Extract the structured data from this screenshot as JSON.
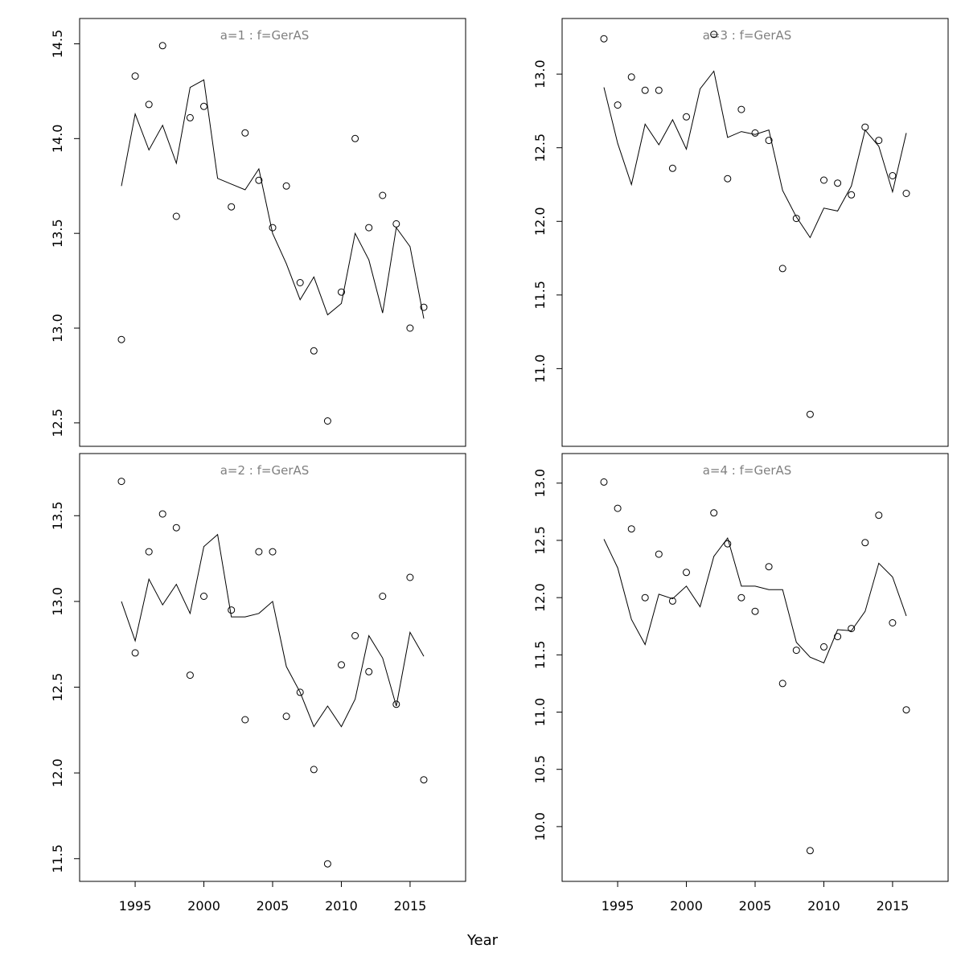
{
  "figure": {
    "xlabel": "Year"
  },
  "chart_data": [
    {
      "type": "line",
      "title": "a=1 : f=GerAS",
      "xlim": [
        1992,
        2018
      ],
      "ylim": [
        12.46,
        14.55
      ],
      "yticks": [
        "12.5",
        "13.0",
        "13.5",
        "14.0",
        "14.5"
      ],
      "xticks": [],
      "series": [
        {
          "type": "scatter",
          "x": [
            1994,
            1995,
            1996,
            1997,
            1998,
            1999,
            2000,
            2002,
            2003,
            2004,
            2005,
            2006,
            2007,
            2008,
            2009,
            2010,
            2011,
            2012,
            2013,
            2014,
            2015,
            2016
          ],
          "values": [
            12.94,
            14.33,
            14.18,
            14.49,
            13.59,
            14.11,
            14.17,
            13.64,
            14.03,
            13.78,
            13.53,
            13.75,
            13.24,
            12.88,
            12.51,
            13.19,
            14.0,
            13.53,
            13.7,
            13.55,
            13.0,
            13.11
          ]
        },
        {
          "type": "line",
          "x": [
            1994,
            1995,
            1996,
            1997,
            1998,
            1999,
            2000,
            2001,
            2002,
            2003,
            2004,
            2005,
            2006,
            2007,
            2008,
            2009,
            2010,
            2011,
            2012,
            2013,
            2014,
            2015,
            2016
          ],
          "values": [
            13.75,
            14.13,
            13.94,
            14.07,
            13.87,
            14.27,
            14.31,
            13.79,
            13.76,
            13.73,
            13.84,
            13.5,
            13.34,
            13.15,
            13.27,
            13.07,
            13.13,
            13.5,
            13.36,
            13.08,
            13.53,
            13.43,
            13.05
          ]
        }
      ]
    },
    {
      "type": "line",
      "title": "a=3 : f=GerAS",
      "xlim": [
        1992,
        2018
      ],
      "ylim": [
        10.58,
        13.27
      ],
      "yticks": [
        "11.0",
        "11.5",
        "12.0",
        "12.5",
        "13.0"
      ],
      "xticks": [],
      "series": [
        {
          "type": "scatter",
          "x": [
            1994,
            1995,
            1996,
            1997,
            1998,
            1999,
            2000,
            2002,
            2003,
            2004,
            2005,
            2006,
            2007,
            2008,
            2009,
            2010,
            2011,
            2012,
            2013,
            2014,
            2015,
            2016
          ],
          "values": [
            13.24,
            12.79,
            12.98,
            12.89,
            12.89,
            12.36,
            12.71,
            13.27,
            12.29,
            12.76,
            12.6,
            12.55,
            11.68,
            12.02,
            10.69,
            12.28,
            12.26,
            12.18,
            12.64,
            12.55,
            12.31,
            12.19
          ]
        },
        {
          "type": "line",
          "x": [
            1994,
            1995,
            1996,
            1997,
            1998,
            1999,
            2000,
            2001,
            2002,
            2003,
            2004,
            2005,
            2006,
            2007,
            2008,
            2009,
            2010,
            2011,
            2012,
            2013,
            2014,
            2015,
            2016
          ],
          "values": [
            12.91,
            12.53,
            12.25,
            12.66,
            12.52,
            12.69,
            12.49,
            12.9,
            13.02,
            12.57,
            12.61,
            12.59,
            12.62,
            12.21,
            12.03,
            11.89,
            12.09,
            12.07,
            12.24,
            12.62,
            12.51,
            12.2,
            12.6
          ]
        }
      ]
    },
    {
      "type": "line",
      "title": "a=2 : f=GerAS",
      "xlim": [
        1992,
        2018
      ],
      "ylim": [
        11.46,
        13.77
      ],
      "yticks": [
        "11.5",
        "12.0",
        "12.5",
        "13.0",
        "13.5"
      ],
      "xticks": [
        "1995",
        "2000",
        "2005",
        "2010",
        "2015"
      ],
      "series": [
        {
          "type": "scatter",
          "x": [
            1994,
            1995,
            1996,
            1997,
            1998,
            1999,
            2000,
            2002,
            2003,
            2004,
            2005,
            2006,
            2007,
            2008,
            2009,
            2010,
            2011,
            2012,
            2013,
            2014,
            2015,
            2016
          ],
          "values": [
            13.7,
            12.7,
            13.29,
            13.51,
            13.43,
            12.57,
            13.03,
            12.95,
            12.31,
            13.29,
            13.29,
            12.33,
            12.47,
            12.02,
            11.47,
            12.63,
            12.8,
            12.59,
            13.03,
            12.4,
            13.14,
            11.96
          ]
        },
        {
          "type": "line",
          "x": [
            1994,
            1995,
            1996,
            1997,
            1998,
            1999,
            2000,
            2001,
            2002,
            2003,
            2004,
            2005,
            2006,
            2007,
            2008,
            2009,
            2010,
            2011,
            2012,
            2013,
            2014,
            2015,
            2016
          ],
          "values": [
            13.0,
            12.77,
            13.13,
            12.98,
            13.1,
            12.93,
            13.32,
            13.39,
            12.91,
            12.91,
            12.93,
            13.0,
            12.62,
            12.47,
            12.27,
            12.39,
            12.27,
            12.43,
            12.8,
            12.67,
            12.39,
            12.82,
            12.68
          ]
        }
      ]
    },
    {
      "type": "line",
      "title": "a=4 : f=GerAS",
      "xlim": [
        1992,
        2018
      ],
      "ylim": [
        9.66,
        13.12
      ],
      "yticks": [
        "10.0",
        "10.5",
        "11.0",
        "11.5",
        "12.0",
        "12.5",
        "13.0"
      ],
      "xticks": [
        "1995",
        "2000",
        "2005",
        "2010",
        "2015"
      ],
      "series": [
        {
          "type": "scatter",
          "x": [
            1994,
            1995,
            1996,
            1997,
            1998,
            1999,
            2000,
            2002,
            2003,
            2004,
            2005,
            2006,
            2007,
            2008,
            2009,
            2010,
            2011,
            2012,
            2013,
            2014,
            2015,
            2016
          ],
          "values": [
            13.01,
            12.78,
            12.6,
            12.0,
            12.38,
            11.97,
            12.22,
            12.74,
            12.47,
            12.0,
            11.88,
            12.27,
            11.25,
            11.54,
            9.79,
            11.57,
            11.66,
            11.73,
            12.48,
            12.72,
            11.78,
            11.02
          ]
        },
        {
          "type": "line",
          "x": [
            1994,
            1995,
            1996,
            1997,
            1998,
            1999,
            2000,
            2001,
            2002,
            2003,
            2004,
            2005,
            2006,
            2007,
            2008,
            2009,
            2010,
            2011,
            2012,
            2013,
            2014,
            2015,
            2016
          ],
          "values": [
            12.51,
            12.26,
            11.81,
            11.59,
            12.03,
            11.99,
            12.1,
            11.92,
            12.36,
            12.52,
            12.1,
            12.1,
            12.07,
            12.07,
            11.61,
            11.48,
            11.43,
            11.72,
            11.71,
            11.88,
            12.3,
            12.18,
            11.84
          ]
        }
      ]
    }
  ]
}
